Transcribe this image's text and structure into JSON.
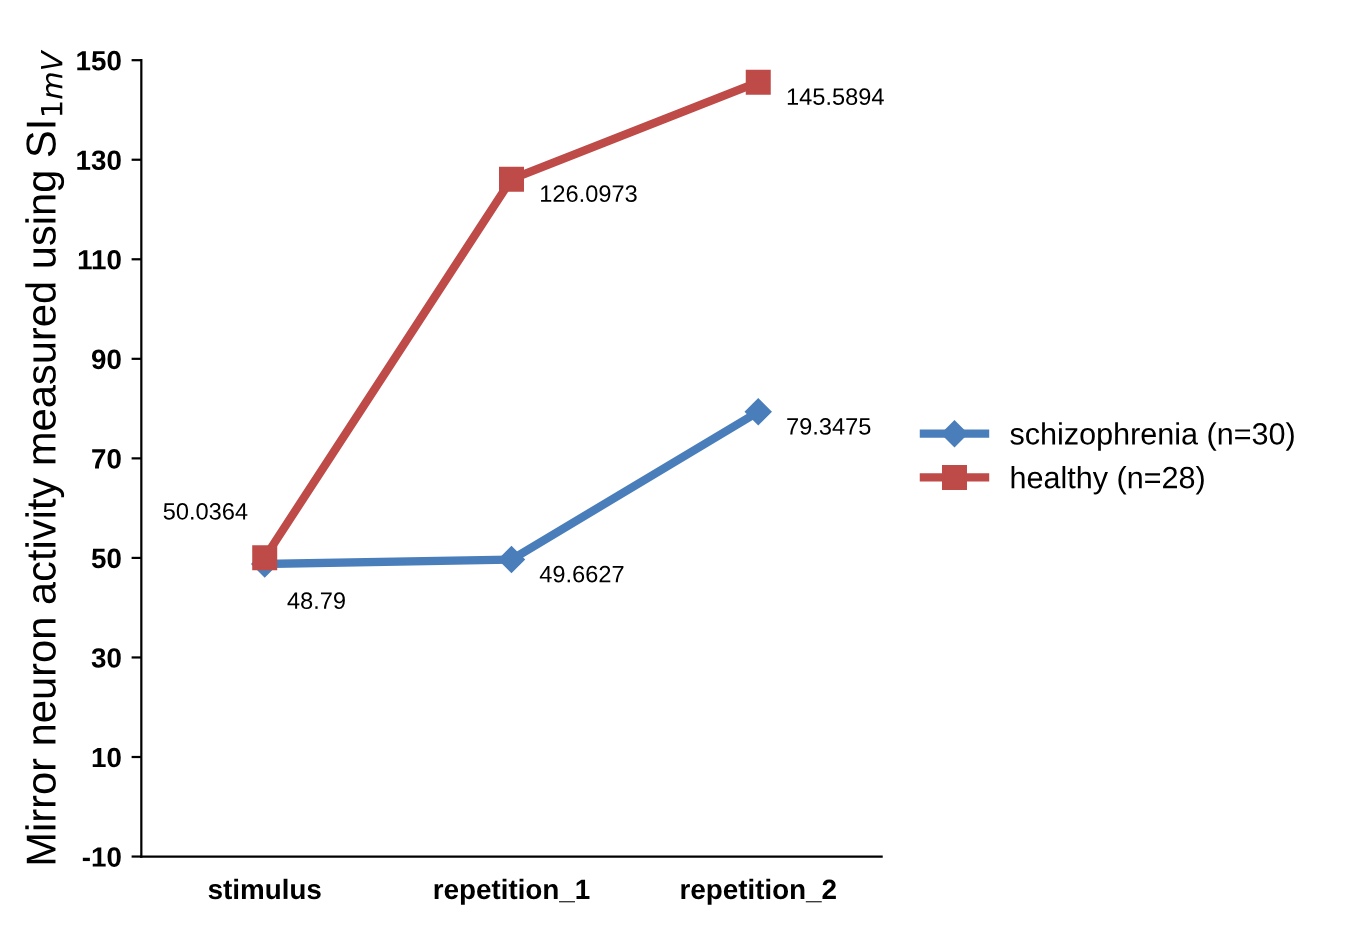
{
  "chart_data": {
    "type": "line",
    "ylabel": "Mirror neuron activity measured using SI$_{1mV}$",
    "categories": [
      "stimulus",
      "repetition_1",
      "repetition_2"
    ],
    "series": [
      {
        "name": "schizophrenia (n=30)",
        "color": "#4a7ebb",
        "marker": "diamond",
        "values": [
          48.79,
          49.6627,
          79.3475
        ]
      },
      {
        "name": "healthy (n=28)",
        "color": "#be4b48",
        "marker": "square",
        "values": [
          50.0364,
          126.0973,
          145.5894
        ]
      }
    ],
    "ylim": [
      -10,
      150
    ],
    "yticks": [
      -10,
      10,
      30,
      50,
      70,
      90,
      110,
      130,
      150
    ],
    "data_labels": true,
    "legend": "right",
    "grid": false,
    "line_style": "solid"
  }
}
